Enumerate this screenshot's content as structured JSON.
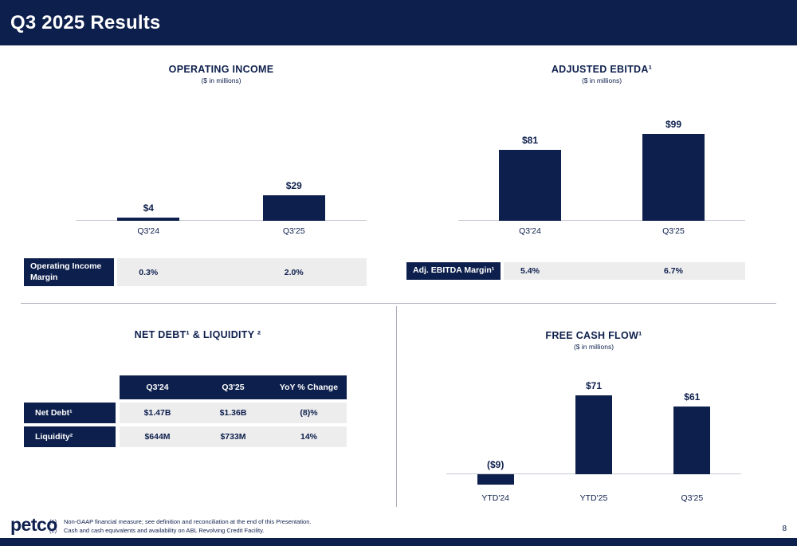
{
  "header": {
    "title": "Q3 2025 Results"
  },
  "colors": {
    "navy": "#0d1f4c",
    "row_gray": "#ededee",
    "baseline_gray": "#c6cad2"
  },
  "chart_data": [
    {
      "id": "operating_income",
      "type": "bar",
      "title": "OPERATING INCOME",
      "subtitle": "($ in millions)",
      "categories": [
        "Q3'24",
        "Q3'25"
      ],
      "values": [
        4,
        29
      ],
      "value_labels": [
        "$4",
        "$29"
      ],
      "ylim": [
        0,
        150
      ],
      "margin_row": {
        "label": "Operating Income Margin",
        "values": [
          "0.3%",
          "2.0%"
        ]
      }
    },
    {
      "id": "adjusted_ebitda",
      "type": "bar",
      "title": "ADJUSTED EBITDA¹",
      "subtitle": "($ in millions)",
      "categories": [
        "Q3'24",
        "Q3'25"
      ],
      "values": [
        81,
        99
      ],
      "value_labels": [
        "$81",
        "$99"
      ],
      "ylim": [
        0,
        150
      ],
      "margin_row": {
        "label": "Adj. EBITDA Margin¹",
        "values": [
          "5.4%",
          "6.7%"
        ]
      }
    },
    {
      "id": "net_debt_liquidity",
      "type": "table",
      "title": "NET DEBT¹ & LIQUIDITY ²",
      "columns": [
        "Q3'24",
        "Q3'25",
        "YoY % Change"
      ],
      "rows": [
        {
          "label": "Net Debt¹",
          "values": [
            "$1.47B",
            "$1.36B",
            "(8)%"
          ]
        },
        {
          "label": "Liquidity²",
          "values": [
            "$644M",
            "$733M",
            "14%"
          ]
        }
      ]
    },
    {
      "id": "free_cash_flow",
      "type": "bar",
      "title": "FREE CASH FLOW¹",
      "subtitle": "($ in millions)",
      "categories": [
        "YTD'24",
        "YTD'25",
        "Q3'25"
      ],
      "values": [
        -9,
        71,
        61
      ],
      "value_labels": [
        "($9)",
        "$71",
        "$61"
      ],
      "ylim": [
        -12,
        100
      ]
    }
  ],
  "footer": {
    "logo": "petco",
    "footnotes": [
      {
        "num": "(1)",
        "text": "Non-GAAP financial measure; see definition and reconciliation at the end of this Presentation."
      },
      {
        "num": "(2)",
        "text": "Cash and cash equivalents and availability on ABL Revolving Credit Facility."
      }
    ],
    "page_number": "8"
  }
}
